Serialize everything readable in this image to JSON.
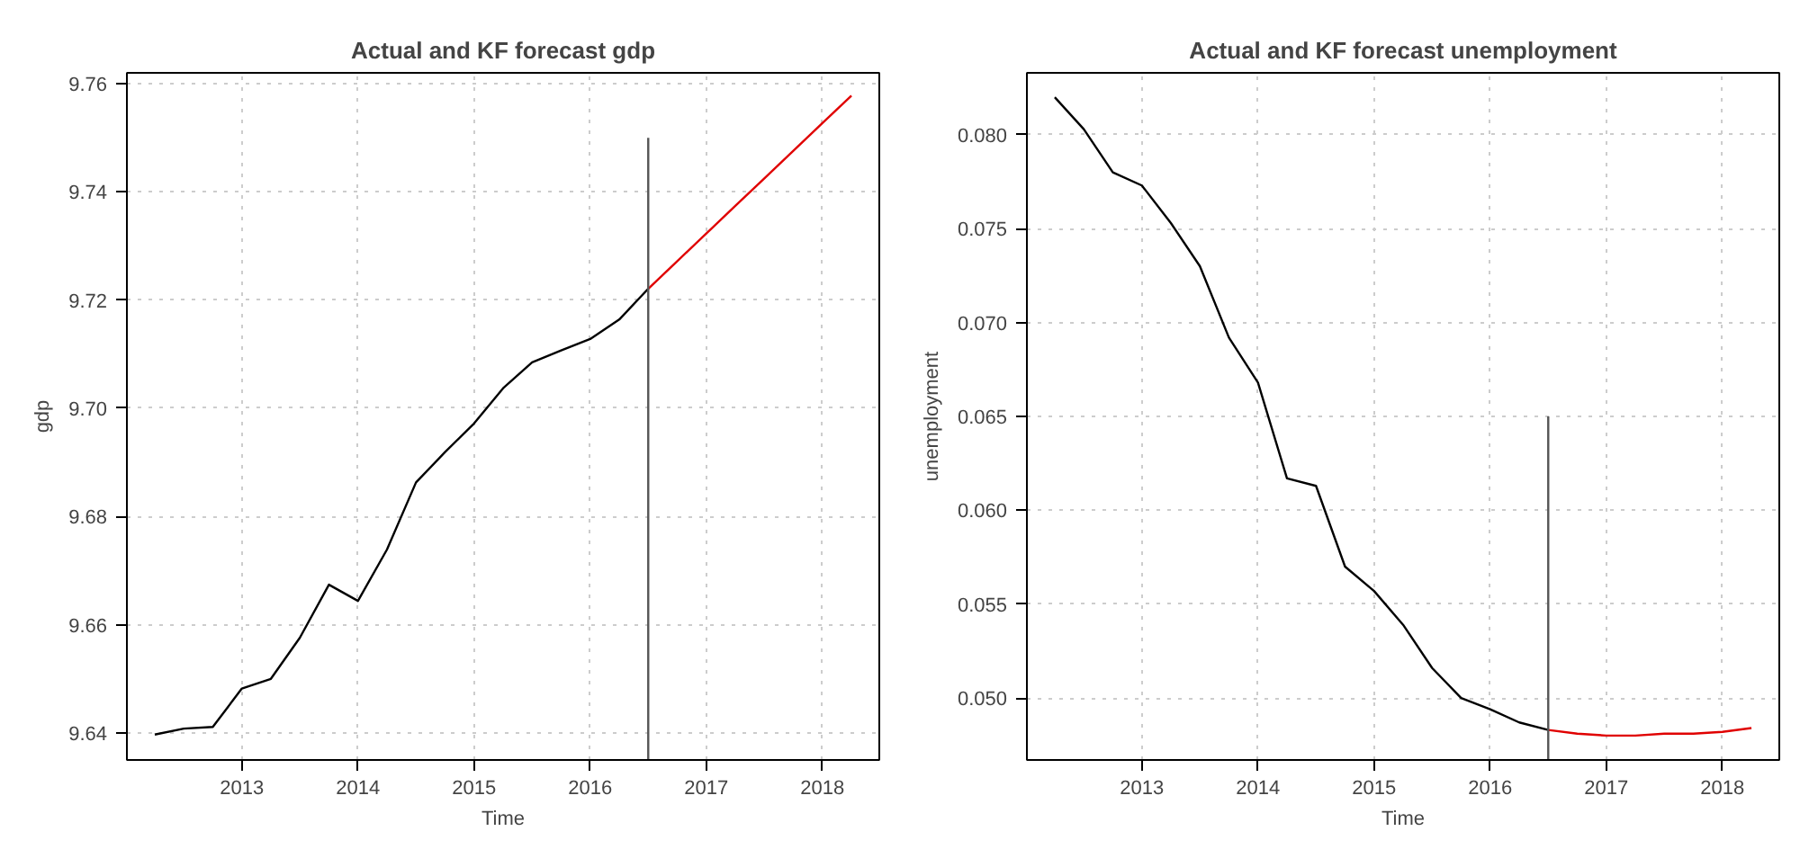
{
  "chart_data": [
    {
      "type": "line",
      "title": "Actual and KF forecast gdp",
      "xlabel": "Time",
      "ylabel": "gdp",
      "xlim": [
        2012.01,
        2018.49
      ],
      "xticks": [
        2013,
        2014,
        2015,
        2016,
        2017,
        2018
      ],
      "ylim": [
        9.635,
        9.762
      ],
      "yticks": [
        9.64,
        9.66,
        9.68,
        {
          "value": 9.7,
          "label": "9.70"
        },
        9.72,
        9.74,
        9.76
      ],
      "grid": true,
      "line_style": "solid",
      "series": [
        {
          "color": "#000000",
          "x": [
            2012.25,
            2012.5,
            2012.75,
            2013.0,
            2013.25,
            2013.5,
            2013.75,
            2014.0,
            2014.25,
            2014.5,
            2014.75,
            2015.0,
            2015.25,
            2015.5,
            2015.75,
            2016.0,
            2016.25,
            2016.5
          ],
          "values": [
            9.6397,
            9.6408,
            9.6411,
            9.6482,
            9.65,
            9.6576,
            9.6674,
            9.6644,
            9.6739,
            9.6863,
            9.6919,
            9.6972,
            9.7037,
            9.7085,
            9.7107,
            9.7128,
            9.7164,
            9.7221
          ]
        },
        {
          "color": "#e00000",
          "x": [
            2016.5,
            2016.75,
            2017.0,
            2017.25,
            2017.5,
            2017.75,
            2018.0,
            2018.25
          ],
          "values": [
            9.7221,
            9.7272,
            9.7323,
            9.7374,
            9.7425,
            9.7476,
            9.7527,
            9.7578
          ]
        },
        {
          "color": "#555555",
          "x": [
            2016.5,
            2016.5
          ],
          "values": [
            9.635,
            9.75
          ]
        }
      ]
    },
    {
      "type": "line",
      "title": "Actual and KF forecast unemployment",
      "xlabel": "Time",
      "ylabel": "unemployment",
      "xlim": [
        2012.01,
        2018.49
      ],
      "xticks": [
        2013,
        2014,
        2015,
        2016,
        2017,
        2018
      ],
      "ylim": [
        0.0467,
        0.0833
      ],
      "yticks": [
        {
          "value": 0.05,
          "label": "0.050"
        },
        {
          "value": 0.055,
          "label": "0.055"
        },
        {
          "value": 0.06,
          "label": "0.060"
        },
        {
          "value": 0.065,
          "label": "0.065"
        },
        {
          "value": 0.07,
          "label": "0.070"
        },
        {
          "value": 0.075,
          "label": "0.075"
        },
        {
          "value": 0.08,
          "label": "0.080"
        }
      ],
      "grid": true,
      "line_style": "solid",
      "series": [
        {
          "color": "#000000",
          "x": [
            2012.25,
            2012.5,
            2012.75,
            2013.0,
            2013.25,
            2013.5,
            2013.75,
            2014.0,
            2014.25,
            2014.5,
            2014.75,
            2015.0,
            2015.25,
            2015.5,
            2015.75,
            2016.0,
            2016.25,
            2016.5
          ],
          "values": [
            0.082,
            0.0803,
            0.078,
            0.0773,
            0.0753,
            0.073,
            0.0692,
            0.0668,
            0.0617,
            0.0613,
            0.057,
            0.0557,
            0.0539,
            0.0516,
            0.05,
            0.0494,
            0.0487,
            0.0483
          ]
        },
        {
          "color": "#e00000",
          "x": [
            2016.5,
            2016.75,
            2017.0,
            2017.25,
            2017.5,
            2017.75,
            2018.0,
            2018.25
          ],
          "values": [
            0.0483,
            0.0481,
            0.048,
            0.048,
            0.0481,
            0.0481,
            0.0482,
            0.0484
          ]
        },
        {
          "color": "#555555",
          "x": [
            2016.5,
            2016.5
          ],
          "values": [
            0.0467,
            0.065
          ]
        }
      ]
    }
  ]
}
